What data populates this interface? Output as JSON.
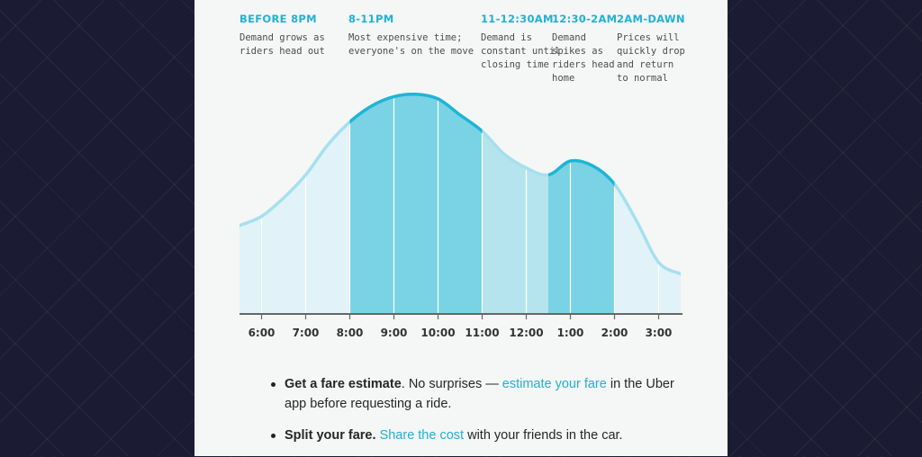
{
  "phases": [
    {
      "title": "BEFORE 8PM",
      "desc": "Demand grows as\nriders head out"
    },
    {
      "title": "8-11PM",
      "desc": "Most expensive time;\neveryone's on the move"
    },
    {
      "title": "11-12:30AM",
      "desc": "Demand is\nconstant until\nclosing time"
    },
    {
      "title": "12:30-2AM",
      "desc": "Demand\nspikes as\nriders head\nhome"
    },
    {
      "title": "2AM-DAWN",
      "desc": "Prices will\nquickly drop\nand return\nto normal"
    }
  ],
  "tips": [
    {
      "bold": "Get a fare estimate",
      "after_bold": ". No surprises — ",
      "link": "estimate your fare",
      "rest": " in the Uber app before requesting a ride."
    },
    {
      "bold": "Split your fare.",
      "after_bold": " ",
      "link": "Share the cost",
      "rest": " with your friends in the car."
    }
  ],
  "colors": {
    "background": "#1b1c33",
    "card": "#f5f6f6",
    "accent": "#22b1d3",
    "peak_fill": "#79d3e4",
    "shoulder_fill": "#b5e4ef",
    "base_fill": "#e1f3f8",
    "base_line": "#a6e0ee",
    "peak_line": "#1fb5d5"
  },
  "chart_data": {
    "type": "area",
    "title": "",
    "xlabel": "",
    "ylabel": "",
    "categories": [
      "6:00",
      "7:00",
      "8:00",
      "9:00",
      "10:00",
      "11:00",
      "12:00",
      "1:00",
      "2:00",
      "3:00"
    ],
    "x": [
      5.5,
      6.0,
      6.5,
      7.0,
      7.5,
      8.0,
      8.5,
      9.0,
      9.5,
      10.0,
      10.5,
      11.0,
      11.5,
      12.0,
      12.5,
      13.0,
      13.5,
      14.0,
      14.5,
      15.0,
      15.5
    ],
    "values": [
      0.38,
      0.42,
      0.5,
      0.6,
      0.73,
      0.83,
      0.9,
      0.94,
      0.95,
      0.93,
      0.86,
      0.79,
      0.69,
      0.63,
      0.6,
      0.66,
      0.64,
      0.56,
      0.4,
      0.22,
      0.17
    ],
    "ylim": [
      0,
      1
    ],
    "xlim": [
      5.5,
      15.5
    ],
    "regions": [
      {
        "from": 5.5,
        "to": 8.0,
        "level": "base"
      },
      {
        "from": 8.0,
        "to": 11.0,
        "level": "peak"
      },
      {
        "from": 11.0,
        "to": 12.5,
        "level": "shoulder"
      },
      {
        "from": 12.5,
        "to": 14.0,
        "level": "peak"
      },
      {
        "from": 14.0,
        "to": 15.5,
        "level": "base"
      }
    ],
    "grid": true,
    "legend": "none"
  }
}
